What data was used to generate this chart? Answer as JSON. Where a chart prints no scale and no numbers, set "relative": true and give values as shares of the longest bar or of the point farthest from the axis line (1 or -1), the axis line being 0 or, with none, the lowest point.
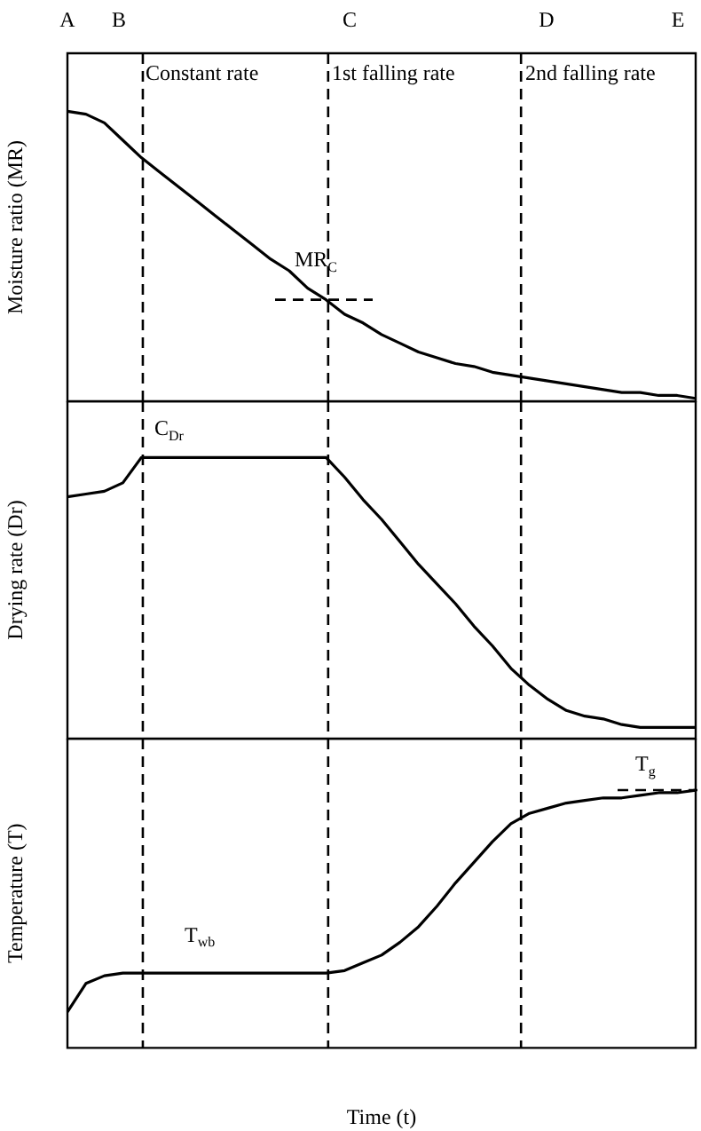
{
  "chart_data": [
    {
      "type": "line",
      "relative": true,
      "ylabel": "Moisture ratio (MR)",
      "grid": false,
      "legend": false,
      "marker": "none",
      "line_style": "solid",
      "categories": [
        null,
        null,
        null,
        null,
        null,
        null,
        null,
        null,
        null,
        null,
        null,
        null,
        null,
        null,
        null,
        null,
        null,
        null,
        null,
        null,
        null,
        null,
        null,
        null,
        null,
        null,
        null,
        null,
        null,
        null,
        null,
        null,
        null,
        null,
        null
      ],
      "series": [
        {
          "color": "#000000",
          "values": [
            1.0,
            0.99,
            0.96,
            0.9,
            0.84,
            0.79,
            0.74,
            0.69,
            0.64,
            0.59,
            0.54,
            0.49,
            0.45,
            0.39,
            0.35,
            0.3,
            0.27,
            0.23,
            0.2,
            0.17,
            0.15,
            0.13,
            0.12,
            0.1,
            0.09,
            0.08,
            0.07,
            0.06,
            0.05,
            0.04,
            0.03,
            0.03,
            0.02,
            0.02,
            0.01
          ]
        }
      ],
      "ref_lines": [
        {
          "axis": "y",
          "value": 0.35,
          "line_style": "dashed"
        }
      ],
      "annotations": [
        "A",
        "B",
        "C",
        "D",
        "E",
        "Constant rate",
        "1st falling rate",
        "2nd falling rate",
        {
          "text": "MR$_{C}$",
          "y": 0.35
        }
      ]
    },
    {
      "type": "line",
      "relative": true,
      "ylabel": "Drying rate (Dr)",
      "grid": false,
      "legend": false,
      "marker": "none",
      "line_style": "solid",
      "categories": [
        null,
        null,
        null,
        null,
        null,
        null,
        null,
        null,
        null,
        null,
        null,
        null,
        null,
        null,
        null,
        null,
        null,
        null,
        null,
        null,
        null,
        null,
        null,
        null,
        null,
        null,
        null,
        null,
        null,
        null,
        null,
        null,
        null,
        null,
        null
      ],
      "series": [
        {
          "color": "#000000",
          "values": [
            0.86,
            0.87,
            0.88,
            0.91,
            1,
            1,
            1,
            1,
            1,
            1,
            1,
            1,
            1,
            1,
            1,
            0.93,
            0.85,
            0.78,
            0.7,
            0.62,
            0.55,
            0.48,
            0.4,
            0.33,
            0.25,
            0.19,
            0.14,
            0.1,
            0.08,
            0.07,
            0.05,
            0.04,
            0.04,
            0.04,
            0.04
          ]
        }
      ],
      "annotations": [
        {
          "text": "C$_{Dr}$",
          "y": 1
        }
      ]
    },
    {
      "type": "line",
      "relative": true,
      "ylabel": "Temperature (T)",
      "xlabel": "Time (t)",
      "grid": false,
      "legend": false,
      "marker": "none",
      "line_style": "solid",
      "categories": [
        null,
        null,
        null,
        null,
        null,
        null,
        null,
        null,
        null,
        null,
        null,
        null,
        null,
        null,
        null,
        null,
        null,
        null,
        null,
        null,
        null,
        null,
        null,
        null,
        null,
        null,
        null,
        null,
        null,
        null,
        null,
        null,
        null,
        null,
        null
      ],
      "series": [
        {
          "color": "#000000",
          "values": [
            0.14,
            0.25,
            0.28,
            0.29,
            0.29,
            0.29,
            0.29,
            0.29,
            0.29,
            0.29,
            0.29,
            0.29,
            0.29,
            0.29,
            0.29,
            0.3,
            0.33,
            0.36,
            0.41,
            0.47,
            0.55,
            0.64,
            0.72,
            0.8,
            0.87,
            0.91,
            0.93,
            0.95,
            0.96,
            0.97,
            0.97,
            0.98,
            0.99,
            0.99,
            1.0
          ]
        }
      ],
      "ref_lines": [
        {
          "axis": "y",
          "value": 1.0,
          "line_style": "dashed"
        }
      ],
      "annotations": [
        {
          "text": "T$_{wb}$",
          "y": 0.29
        },
        {
          "text": "T$_{g}$",
          "y": 1.0
        }
      ]
    }
  ]
}
